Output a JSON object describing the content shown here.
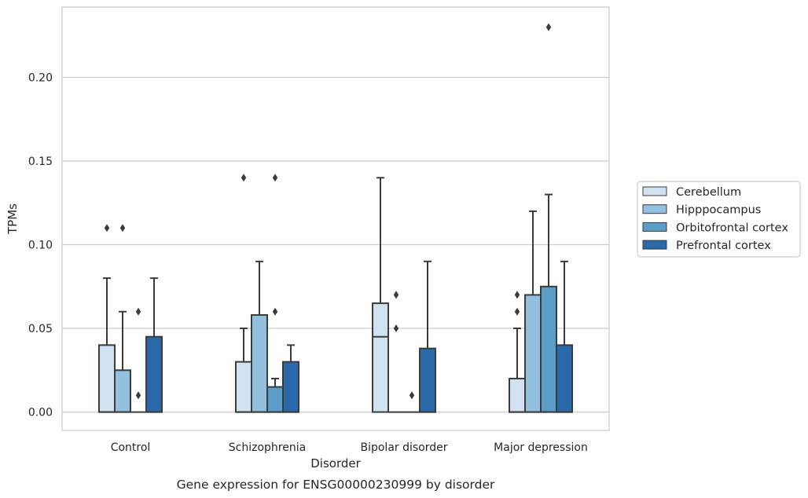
{
  "chart_data": {
    "type": "boxplot",
    "xlabel": "Disorder",
    "ylabel": "TPMs",
    "caption": "Gene expression for ENSG00000230999 by disorder",
    "ylim": [
      -0.011,
      0.242
    ],
    "yticks": [
      0.0,
      0.05,
      0.1,
      0.15,
      0.2
    ],
    "ytick_labels": [
      "0.00",
      "0.05",
      "0.10",
      "0.15",
      "0.20"
    ],
    "grid": true,
    "legend_placement": "right",
    "categories": [
      "Control",
      "Schizophrenia",
      "Bipolar disorder",
      "Major depression"
    ],
    "series": [
      {
        "name": "Cerebellum",
        "color": "#d0e1f1",
        "boxes": [
          {
            "q1": 0.0,
            "median": 0.0,
            "q3": 0.04,
            "whisker_low": 0.0,
            "whisker_high": 0.08,
            "outliers": [
              0.11
            ]
          },
          {
            "q1": 0.0,
            "median": 0.0,
            "q3": 0.03,
            "whisker_low": 0.0,
            "whisker_high": 0.05,
            "outliers": [
              0.14
            ]
          },
          {
            "q1": 0.0,
            "median": 0.045,
            "q3": 0.065,
            "whisker_low": 0.0,
            "whisker_high": 0.14,
            "outliers": []
          },
          {
            "q1": 0.0,
            "median": 0.0,
            "q3": 0.02,
            "whisker_low": 0.0,
            "whisker_high": 0.05,
            "outliers": [
              0.06,
              0.07
            ]
          }
        ]
      },
      {
        "name": "Hipppocampus",
        "color": "#93c0de",
        "boxes": [
          {
            "q1": 0.0,
            "median": 0.0,
            "q3": 0.025,
            "whisker_low": 0.0,
            "whisker_high": 0.06,
            "outliers": [
              0.11
            ]
          },
          {
            "q1": 0.0,
            "median": 0.0,
            "q3": 0.058,
            "whisker_low": 0.0,
            "whisker_high": 0.09,
            "outliers": []
          },
          {
            "q1": 0.0,
            "median": 0.0,
            "q3": 0.0,
            "whisker_low": 0.0,
            "whisker_high": 0.0,
            "outliers": [
              0.05,
              0.07
            ]
          },
          {
            "q1": 0.0,
            "median": 0.0,
            "q3": 0.07,
            "whisker_low": 0.0,
            "whisker_high": 0.12,
            "outliers": []
          }
        ]
      },
      {
        "name": "Orbitofrontal cortex",
        "color": "#5b9dc9",
        "boxes": [
          {
            "q1": 0.0,
            "median": 0.0,
            "q3": 0.0,
            "whisker_low": 0.0,
            "whisker_high": 0.0,
            "outliers": [
              0.01,
              0.06
            ]
          },
          {
            "q1": 0.0,
            "median": 0.0,
            "q3": 0.015,
            "whisker_low": 0.0,
            "whisker_high": 0.02,
            "outliers": [
              0.06,
              0.14
            ]
          },
          {
            "q1": 0.0,
            "median": 0.0,
            "q3": 0.0,
            "whisker_low": 0.0,
            "whisker_high": 0.0,
            "outliers": [
              0.01
            ]
          },
          {
            "q1": 0.0,
            "median": 0.0,
            "q3": 0.075,
            "whisker_low": 0.0,
            "whisker_high": 0.13,
            "outliers": [
              0.23
            ]
          }
        ]
      },
      {
        "name": "Prefrontal cortex",
        "color": "#2a69a9",
        "boxes": [
          {
            "q1": 0.0,
            "median": 0.0,
            "q3": 0.045,
            "whisker_low": 0.0,
            "whisker_high": 0.08,
            "outliers": []
          },
          {
            "q1": 0.0,
            "median": 0.0,
            "q3": 0.03,
            "whisker_low": 0.0,
            "whisker_high": 0.04,
            "outliers": []
          },
          {
            "q1": 0.0,
            "median": 0.0,
            "q3": 0.038,
            "whisker_low": 0.0,
            "whisker_high": 0.09,
            "outliers": []
          },
          {
            "q1": 0.0,
            "median": 0.0,
            "q3": 0.04,
            "whisker_low": 0.0,
            "whisker_high": 0.09,
            "outliers": []
          }
        ]
      }
    ]
  }
}
